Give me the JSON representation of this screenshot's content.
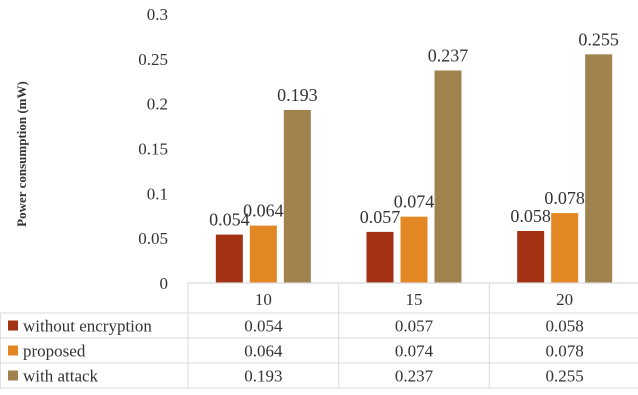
{
  "chart_data": {
    "type": "bar",
    "title": "",
    "xlabel": "",
    "ylabel": "Power consumption (mW)",
    "ylim": [
      0,
      0.3
    ],
    "yticks": [
      "0",
      "0.05",
      "0.1",
      "0.15",
      "0.2",
      "0.25",
      "0.3"
    ],
    "ytick_values": [
      0,
      0.05,
      0.1,
      0.15,
      0.2,
      0.25,
      0.3
    ],
    "categories": [
      "10",
      "15",
      "20"
    ],
    "series": [
      {
        "name": "without encryption",
        "color": "#a33214",
        "values": [
          0.054,
          0.057,
          0.058
        ],
        "labels": [
          "0.054",
          "0.057",
          "0.058"
        ]
      },
      {
        "name": "proposed",
        "color": "#e38724",
        "values": [
          0.064,
          0.074,
          0.078
        ],
        "labels": [
          "0.064",
          "0.074",
          "0.078"
        ]
      },
      {
        "name": "with attack",
        "color": "#a0824f",
        "values": [
          0.193,
          0.237,
          0.255
        ],
        "labels": [
          "0.193",
          "0.237",
          "0.255"
        ]
      }
    ],
    "legend": "data-table",
    "grid": false
  }
}
